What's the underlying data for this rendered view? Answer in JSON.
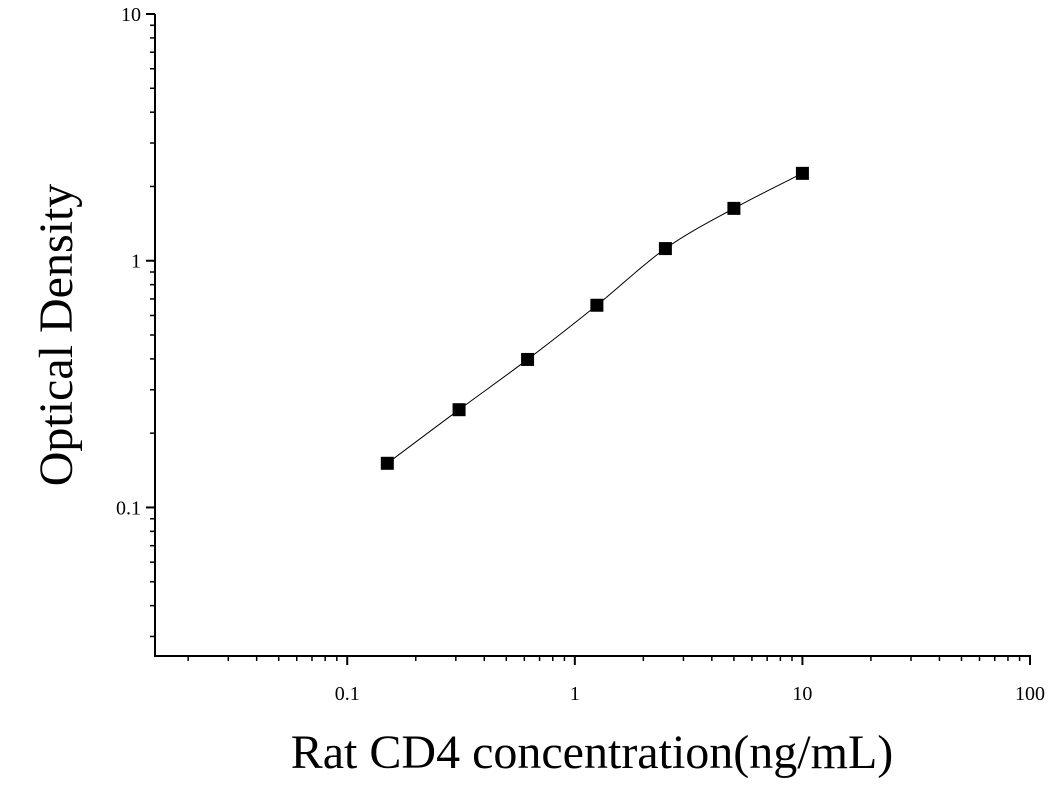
{
  "chart_data": {
    "type": "scatter",
    "title": "",
    "xlabel": "Rat CD4 concentration(ng/mL)",
    "ylabel": "Optical Density",
    "x_scale": "log",
    "y_scale": "log",
    "xlim": [
      0.0143,
      100
    ],
    "ylim": [
      0.025,
      10
    ],
    "x_ticks": [
      {
        "value": 0.1,
        "label": "0.1"
      },
      {
        "value": 1,
        "label": "1"
      },
      {
        "value": 10,
        "label": "10"
      },
      {
        "value": 100,
        "label": "100"
      }
    ],
    "y_ticks": [
      {
        "value": 0.1,
        "label": "0.1"
      },
      {
        "value": 1,
        "label": "1"
      },
      {
        "value": 10,
        "label": "10"
      }
    ],
    "grid": false,
    "legend": "none",
    "series": [
      {
        "marker": "square",
        "color": "#000000",
        "x": [
          0.15,
          0.31,
          0.62,
          1.25,
          2.5,
          5,
          10
        ],
        "y": [
          0.151,
          0.249,
          0.398,
          0.66,
          1.12,
          1.63,
          2.26
        ],
        "fit_line": true
      }
    ]
  }
}
